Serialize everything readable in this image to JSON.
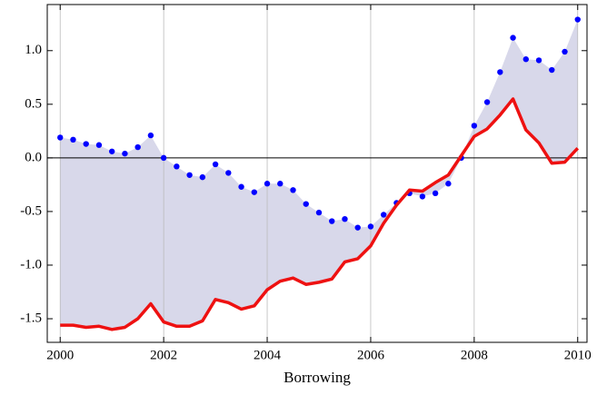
{
  "chart_data": {
    "type": "line",
    "x_label": "Borrowing",
    "x": [
      2000,
      2000.25,
      2000.5,
      2000.75,
      2001,
      2001.25,
      2001.5,
      2001.75,
      2002,
      2002.25,
      2002.5,
      2002.75,
      2003,
      2003.25,
      2003.5,
      2003.75,
      2004,
      2004.25,
      2004.5,
      2004.75,
      2005,
      2005.25,
      2005.5,
      2005.75,
      2006,
      2006.25,
      2006.5,
      2006.75,
      2007,
      2007.25,
      2007.5,
      2007.75,
      2008,
      2008.25,
      2008.5,
      2008.75,
      2009,
      2009.25,
      2009.5,
      2009.75,
      2010
    ],
    "series": [
      {
        "color": "#0000ff",
        "style": "points",
        "values": [
          0.19,
          0.17,
          0.13,
          0.12,
          0.06,
          0.04,
          0.1,
          0.21,
          0.0,
          -0.08,
          -0.16,
          -0.18,
          -0.06,
          -0.14,
          -0.27,
          -0.32,
          -0.24,
          -0.24,
          -0.3,
          -0.43,
          -0.51,
          -0.59,
          -0.57,
          -0.65,
          -0.64,
          -0.53,
          -0.42,
          -0.33,
          -0.36,
          -0.33,
          -0.24,
          0.0,
          0.3,
          0.52,
          0.8,
          1.12,
          0.92,
          0.91,
          0.82,
          0.99,
          1.29
        ]
      },
      {
        "color": "#ee1111",
        "style": "line",
        "values": [
          -1.56,
          -1.56,
          -1.58,
          -1.57,
          -1.6,
          -1.58,
          -1.5,
          -1.36,
          -1.53,
          -1.57,
          -1.57,
          -1.52,
          -1.32,
          -1.35,
          -1.41,
          -1.38,
          -1.23,
          -1.15,
          -1.12,
          -1.18,
          -1.16,
          -1.13,
          -0.97,
          -0.94,
          -0.82,
          -0.61,
          -0.44,
          -0.3,
          -0.31,
          -0.23,
          -0.16,
          0.02,
          0.2,
          0.27,
          0.4,
          0.55,
          0.26,
          0.14,
          -0.05,
          -0.04,
          0.09
        ]
      }
    ],
    "fill_between_color": "#d8d8ea",
    "xlim": [
      1999.75,
      2010.18
    ],
    "ylim": [
      -1.72,
      1.43
    ],
    "xticks": [
      2000,
      2002,
      2004,
      2006,
      2008,
      2010
    ],
    "yticks": [
      {
        "value": -1.5,
        "label": "-1.5"
      },
      {
        "value": -1,
        "label": "-1.0"
      },
      {
        "value": -0.5,
        "label": "-0.5"
      },
      {
        "value": 0,
        "label": "0.0"
      },
      {
        "value": 0.5,
        "label": "0.5"
      },
      {
        "value": 1,
        "label": "1.0"
      }
    ],
    "grid_x": true,
    "zero_line": true
  }
}
